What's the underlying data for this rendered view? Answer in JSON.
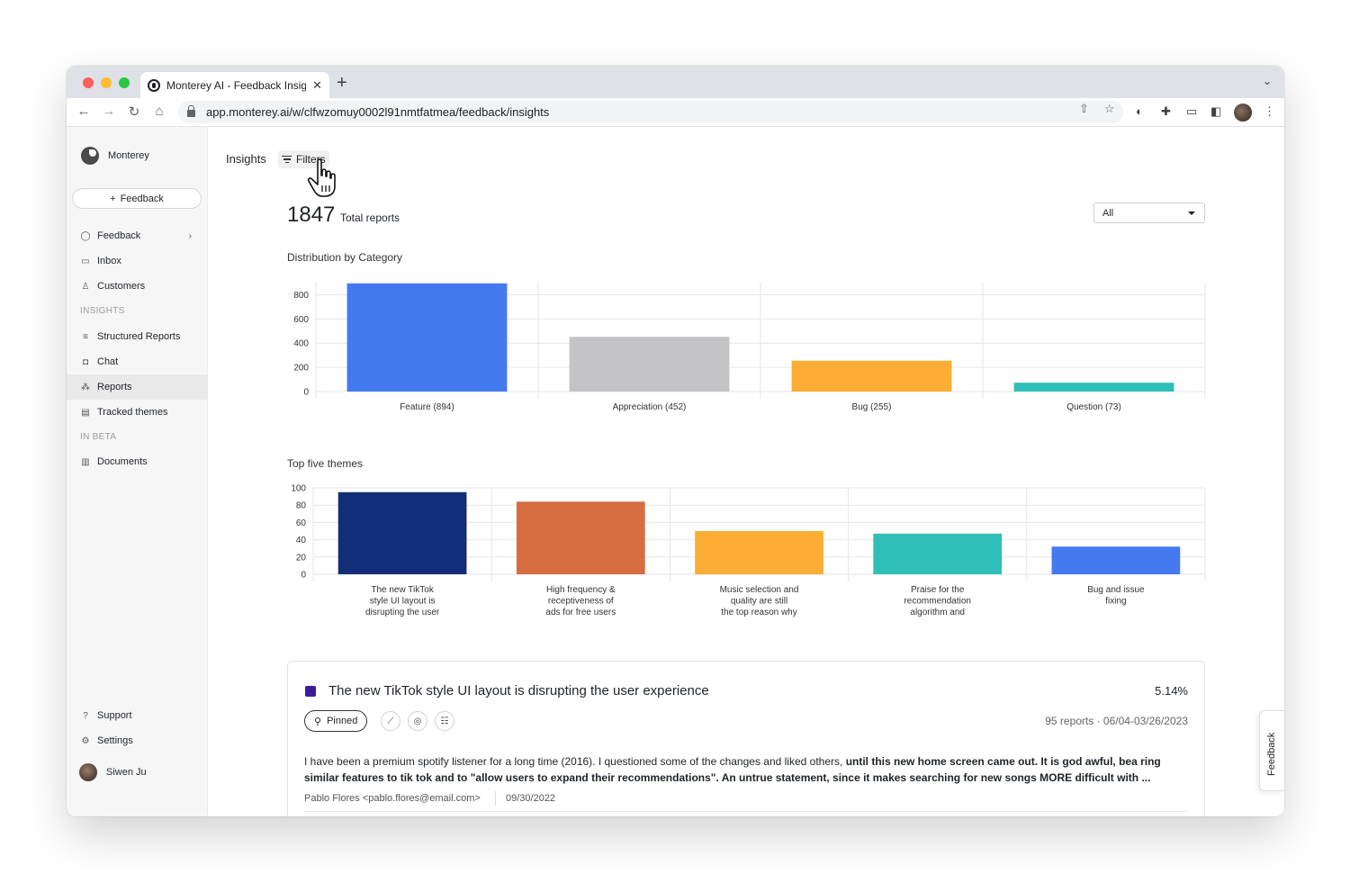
{
  "browser": {
    "tab_title": "Monterey AI - Feedback Insigh",
    "new_tab": "+",
    "url": "app.monterey.ai/w/clfwzomuy0002l91nmtfatmea/feedback/insights"
  },
  "sidebar": {
    "brand": "Monterey",
    "new_button": "Feedback",
    "items_top": [
      {
        "label": "Feedback",
        "icon": "chat-bubble-icon"
      },
      {
        "label": "Inbox",
        "icon": "inbox-icon"
      },
      {
        "label": "Customers",
        "icon": "person-icon"
      }
    ],
    "section_insights": "INSIGHTS",
    "items_insights": [
      {
        "label": "Structured Reports",
        "icon": "list-icon"
      },
      {
        "label": "Chat",
        "icon": "chat-icon"
      },
      {
        "label": "Reports",
        "icon": "reports-icon",
        "active": true
      },
      {
        "label": "Tracked themes",
        "icon": "tracked-icon"
      }
    ],
    "section_beta": "IN BETA",
    "items_beta": [
      {
        "label": "Documents",
        "icon": "document-icon"
      }
    ],
    "items_bottom": [
      {
        "label": "Support",
        "icon": "help-icon"
      },
      {
        "label": "Settings",
        "icon": "gear-icon"
      }
    ],
    "user_name": "Siwen Ju"
  },
  "header": {
    "breadcrumb": "Insights",
    "filters_label": "Filters"
  },
  "summary": {
    "total": "1847",
    "total_label": "Total reports",
    "filter_value": "All"
  },
  "chart_data": [
    {
      "type": "bar",
      "title": "Distribution by Category",
      "categories": [
        "Feature (894)",
        "Appreciation (452)",
        "Bug (255)",
        "Question (73)"
      ],
      "values": [
        894,
        452,
        255,
        73
      ],
      "colors": [
        "#4479f0",
        "#c4c3c5",
        "#fcad33",
        "#2ebfb8"
      ],
      "ylim": [
        0,
        900
      ],
      "yticks": [
        0,
        200,
        400,
        600,
        800
      ],
      "grid": true
    },
    {
      "type": "bar",
      "title": "Top five themes",
      "categories": [
        [
          "The new TikTok",
          "style UI layout is",
          "disrupting the user"
        ],
        [
          "High frequency &",
          "receptiveness of",
          "ads for free users"
        ],
        [
          "Music selection and",
          "quality are still",
          "the top reason why"
        ],
        [
          "Praise for the",
          "recommendation",
          "algorithm and"
        ],
        [
          "Bug and issue",
          "fixing"
        ]
      ],
      "values": [
        95,
        84,
        50,
        47,
        32
      ],
      "colors": [
        "#132e78",
        "#d86c41",
        "#fcad33",
        "#2ebfb8",
        "#4479f0"
      ],
      "ylim": [
        0,
        100
      ],
      "yticks": [
        0,
        20,
        40,
        60,
        80,
        100
      ],
      "grid": true
    }
  ],
  "card": {
    "title": "The new TikTok style UI layout is disrupting the user experience",
    "percent": "5.14%",
    "pin_label": "Pinned",
    "meta": "95 reports · 06/04-03/26/2023",
    "quote_plain": "I have been a premium spotify listener for a long time (2016). I questioned some of the changes and liked others, ",
    "quote_bold": "until this new home screen came out. It is god awful, bea ring similar features to tik tok and to \"allow users to expand their recommendations\". An untrue statement, since it makes searching for new songs MORE difficult with ...",
    "author": "Pablo Flores <pablo.flores@email.com>",
    "date": "09/30/2022",
    "swatch_color": "#3a1d9c"
  },
  "side_tab": "Feedback"
}
